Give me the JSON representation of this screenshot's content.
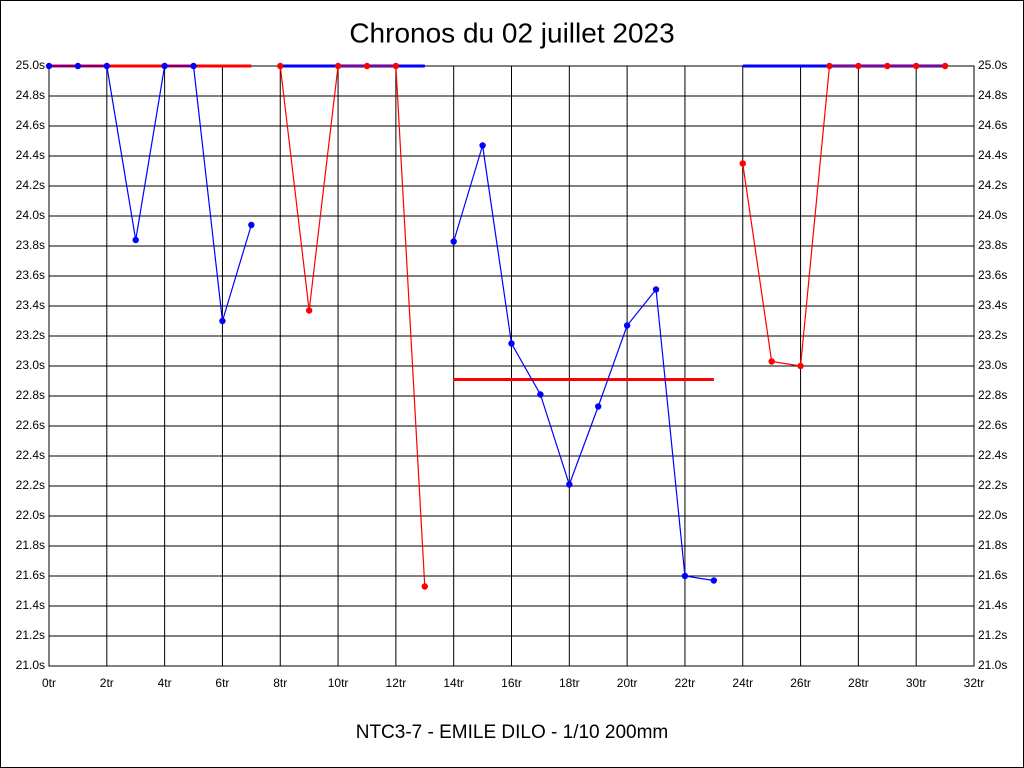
{
  "chart_data": {
    "type": "line",
    "title": "Chronos du 02 juillet 2023",
    "x_label": "NTC3-7 - EMILE DILO - 1/10 200mm",
    "xlim": [
      0,
      32
    ],
    "xticks": [
      {
        "value": 0,
        "label": "0tr"
      },
      {
        "value": 2,
        "label": "2tr"
      },
      {
        "value": 4,
        "label": "4tr"
      },
      {
        "value": 6,
        "label": "6tr"
      },
      {
        "value": 8,
        "label": "8tr"
      },
      {
        "value": 10,
        "label": "10tr"
      },
      {
        "value": 12,
        "label": "12tr"
      },
      {
        "value": 14,
        "label": "14tr"
      },
      {
        "value": 16,
        "label": "16tr"
      },
      {
        "value": 18,
        "label": "18tr"
      },
      {
        "value": 20,
        "label": "20tr"
      },
      {
        "value": 22,
        "label": "22tr"
      },
      {
        "value": 24,
        "label": "24tr"
      },
      {
        "value": 26,
        "label": "26tr"
      },
      {
        "value": 28,
        "label": "28tr"
      },
      {
        "value": 30,
        "label": "30tr"
      },
      {
        "value": 32,
        "label": "32tr"
      }
    ],
    "ylim": [
      21.0,
      25.0
    ],
    "yticks": [
      {
        "value": 21.0,
        "label": "21.0s"
      },
      {
        "value": 21.2,
        "label": "21.2s"
      },
      {
        "value": 21.4,
        "label": "21.4s"
      },
      {
        "value": 21.6,
        "label": "21.6s"
      },
      {
        "value": 21.8,
        "label": "21.8s"
      },
      {
        "value": 22.0,
        "label": "22.0s"
      },
      {
        "value": 22.2,
        "label": "22.2s"
      },
      {
        "value": 22.4,
        "label": "22.4s"
      },
      {
        "value": 22.6,
        "label": "22.6s"
      },
      {
        "value": 22.8,
        "label": "22.8s"
      },
      {
        "value": 23.0,
        "label": "23.0s"
      },
      {
        "value": 23.2,
        "label": "23.2s"
      },
      {
        "value": 23.4,
        "label": "23.4s"
      },
      {
        "value": 23.6,
        "label": "23.6s"
      },
      {
        "value": 23.8,
        "label": "23.8s"
      },
      {
        "value": 24.0,
        "label": "24.0s"
      },
      {
        "value": 24.2,
        "label": "24.2s"
      },
      {
        "value": 24.4,
        "label": "24.4s"
      },
      {
        "value": 24.6,
        "label": "24.6s"
      },
      {
        "value": 24.8,
        "label": "24.8s"
      },
      {
        "value": 25.0,
        "label": "25.0s"
      }
    ],
    "grid": true,
    "series": [
      {
        "color": "#0000ff",
        "x": [
          0,
          1,
          2,
          3,
          4,
          5,
          6,
          7
        ],
        "values": [
          25.0,
          25.0,
          25.0,
          23.84,
          25.0,
          25.0,
          23.3,
          23.94
        ],
        "reference": {
          "value": 25.0,
          "color": "#ff0000"
        }
      },
      {
        "color": "#ff0000",
        "x": [
          8,
          9,
          10,
          11,
          12,
          13
        ],
        "values": [
          25.0,
          23.37,
          25.0,
          25.0,
          25.0,
          21.53
        ],
        "reference": {
          "value": 25.0,
          "color": "#0000ff"
        }
      },
      {
        "color": "#0000ff",
        "x": [
          14,
          15,
          16,
          17,
          18,
          19,
          20,
          21,
          22,
          23
        ],
        "values": [
          23.83,
          24.47,
          23.15,
          22.81,
          22.21,
          22.73,
          23.27,
          23.51,
          21.6,
          21.57
        ],
        "reference": {
          "value": 22.91,
          "color": "#ff0000"
        }
      },
      {
        "color": "#ff0000",
        "x": [
          24,
          25,
          26,
          27,
          28,
          29,
          30,
          31
        ],
        "values": [
          24.35,
          23.03,
          23.0,
          25.0,
          25.0,
          25.0,
          25.0,
          25.0
        ],
        "reference": {
          "value": 25.0,
          "color": "#0000ff"
        }
      }
    ]
  }
}
